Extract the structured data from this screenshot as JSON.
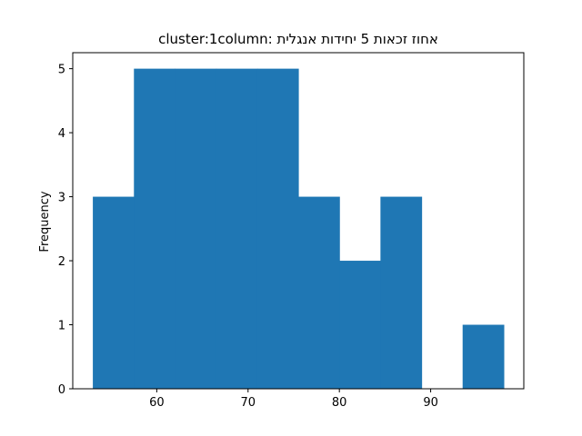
{
  "chart_data": {
    "type": "bar",
    "title": "cluster:1column:    אחוז זכאות 5 יחידות אנגלית",
    "xlabel": "",
    "ylabel": "Frequency",
    "bins": [
      {
        "x0": 53.0,
        "x1": 57.5,
        "count": 3
      },
      {
        "x0": 57.5,
        "x1": 62.0,
        "count": 5
      },
      {
        "x0": 62.0,
        "x1": 66.5,
        "count": 5
      },
      {
        "x0": 66.5,
        "x1": 71.0,
        "count": 5
      },
      {
        "x0": 71.0,
        "x1": 75.5,
        "count": 5
      },
      {
        "x0": 75.5,
        "x1": 80.0,
        "count": 3
      },
      {
        "x0": 80.0,
        "x1": 84.5,
        "count": 2
      },
      {
        "x0": 84.5,
        "x1": 89.0,
        "count": 3
      },
      {
        "x0": 89.0,
        "x1": 93.5,
        "count": 0
      },
      {
        "x0": 93.5,
        "x1": 98.0,
        "count": 1
      }
    ],
    "xlim": [
      50.8,
      100.2
    ],
    "ylim": [
      0,
      5.25
    ],
    "xticks": [
      60,
      70,
      80,
      90
    ],
    "yticks": [
      0,
      1,
      2,
      3,
      4,
      5
    ],
    "bar_color": "#1f77b4",
    "grid": false,
    "legend": "none"
  }
}
